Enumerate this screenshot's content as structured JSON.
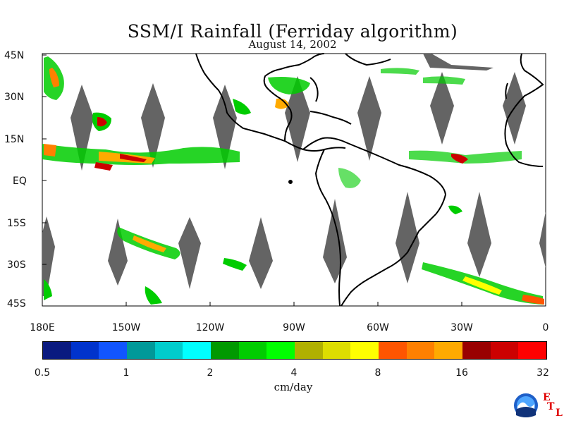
{
  "title": "SSM/I Rainfall (Ferriday algorithm)",
  "subtitle": "August 14, 2002",
  "lat_labels": [
    "45N",
    "30N",
    "15N",
    "EQ",
    "15S",
    "30S",
    "45S"
  ],
  "lon_labels": [
    "180E",
    "150W",
    "120W",
    "90W",
    "60W",
    "30W",
    "0"
  ],
  "colorbar": {
    "colors": [
      "#0a1a80",
      "#0033cc",
      "#1155ff",
      "#009999",
      "#00cccc",
      "#00ffff",
      "#009900",
      "#00cc00",
      "#00ff00",
      "#b0b000",
      "#dddd00",
      "#ffff00",
      "#ff5500",
      "#ff8000",
      "#ffaa00",
      "#990000",
      "#cc0000",
      "#ff0000"
    ],
    "tick_labels": [
      "0.5",
      "1",
      "2",
      "4",
      "8",
      "16",
      "32"
    ],
    "units": "cm/day"
  },
  "logo": {
    "name": "NOAA",
    "etl_letters": [
      "E",
      "T",
      "L"
    ]
  },
  "map": {
    "land_color": "#000000",
    "no_data_color": "#646464",
    "background": "#ffffff"
  }
}
